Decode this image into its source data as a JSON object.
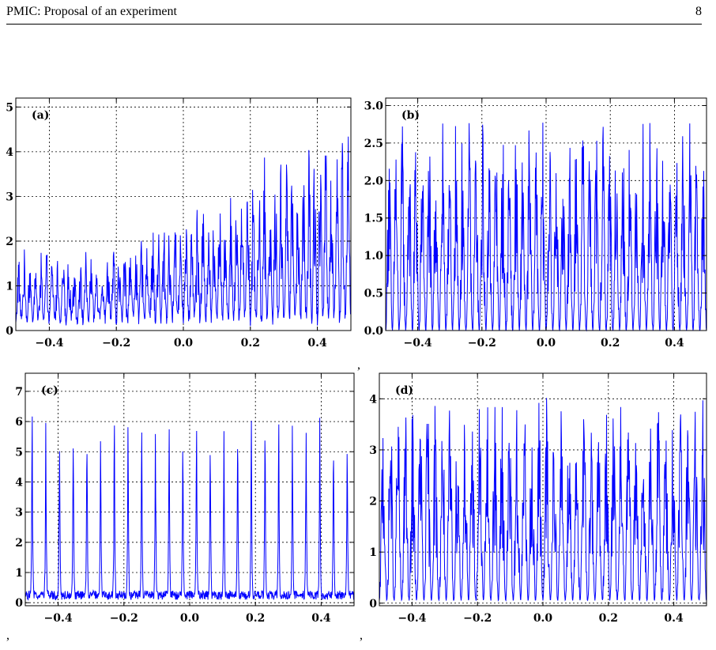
{
  "header": {
    "title": "PMIC: Proposal of an experiment",
    "page_number": "8"
  },
  "separators": [
    ",",
    ",",
    ","
  ],
  "chart_data": [
    {
      "type": "line",
      "panel_label": "(a)",
      "series_color": "#0000ff",
      "grid": true,
      "xlim": [
        -0.5,
        0.5
      ],
      "ylim": [
        0,
        5.2
      ],
      "xticks": [
        "−0.4",
        "−0.2",
        "0.0",
        "0.2",
        "0.4"
      ],
      "xtick_values": [
        -0.4,
        -0.2,
        0.0,
        0.2,
        0.4
      ],
      "yticks": [
        "0",
        "1",
        "2",
        "3",
        "4",
        "5"
      ],
      "ytick_values": [
        0,
        1,
        2,
        3,
        4,
        5
      ],
      "signal": {
        "peaks": 60,
        "envelope_left": 1.4,
        "envelope_right": 4.7,
        "ramp_start_x": -0.25,
        "baseline": 0.1
      }
    },
    {
      "type": "line",
      "panel_label": "(b)",
      "series_color": "#0000ff",
      "grid": true,
      "xlim": [
        -0.5,
        0.5
      ],
      "ylim": [
        0,
        3.1
      ],
      "xticks": [
        "−0.4",
        "−0.2",
        "0.0",
        "0.2",
        "0.4"
      ],
      "xtick_values": [
        -0.4,
        -0.2,
        0.0,
        0.2,
        0.4
      ],
      "yticks": [
        "0.0",
        "0.5",
        "1.0",
        "1.5",
        "2.0",
        "2.5",
        "3.0"
      ],
      "ytick_values": [
        0,
        0.5,
        1.0,
        1.5,
        2.0,
        2.5,
        3.0
      ],
      "signal": {
        "peaks": 48,
        "envelope_left": 2.8,
        "envelope_right": 2.8,
        "ramp_start_x": -0.5,
        "baseline": 0.0
      }
    },
    {
      "type": "line",
      "panel_label": "(c)",
      "series_color": "#0000ff",
      "grid": true,
      "xlim": [
        -0.5,
        0.5
      ],
      "ylim": [
        -0.1,
        7.6
      ],
      "xticks": [
        "−0.4",
        "−0.2",
        "0.0",
        "0.2",
        "0.4"
      ],
      "xtick_values": [
        -0.4,
        -0.2,
        0.0,
        0.2,
        0.4
      ],
      "yticks": [
        "0",
        "1",
        "2",
        "3",
        "4",
        "5",
        "6",
        "7"
      ],
      "ytick_values": [
        0,
        1,
        2,
        3,
        4,
        5,
        6,
        7
      ],
      "signal": {
        "peaks": 24,
        "envelope_left": 6.8,
        "envelope_right": 6.8,
        "ramp_start_x": -0.5,
        "baseline": 0.1
      }
    },
    {
      "type": "line",
      "panel_label": "(d)",
      "series_color": "#0000ff",
      "grid": true,
      "xlim": [
        -0.5,
        0.5
      ],
      "ylim": [
        -0.05,
        4.5
      ],
      "xticks": [
        "−0.4",
        "−0.2",
        "0.0",
        "0.2",
        "0.4"
      ],
      "xtick_values": [
        -0.4,
        -0.2,
        0.0,
        0.2,
        0.4
      ],
      "yticks": [
        "0",
        "1",
        "2",
        "3",
        "4"
      ],
      "ytick_values": [
        0,
        1,
        2,
        3,
        4
      ],
      "signal": {
        "peaks": 44,
        "envelope_left": 4.0,
        "envelope_right": 4.0,
        "ramp_start_x": -0.5,
        "baseline": 0.05
      }
    }
  ]
}
